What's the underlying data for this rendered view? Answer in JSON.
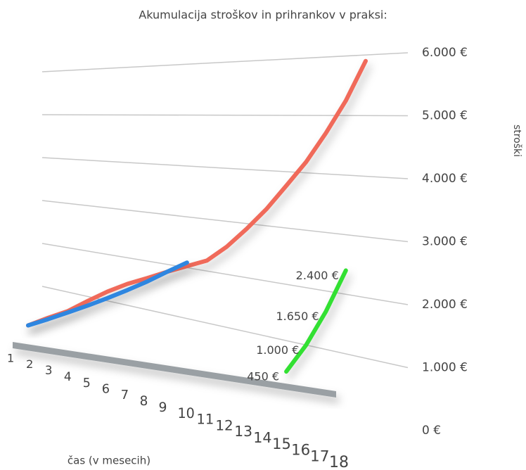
{
  "chart_data": {
    "type": "line",
    "title": "Akumulacija stroškov in prihrankov v praksi:",
    "x_label": "čas (v mesecih)",
    "y_label": "stroški",
    "categories": [
      "1",
      "2",
      "3",
      "4",
      "5",
      "6",
      "7",
      "8",
      "9",
      "10",
      "11",
      "12",
      "13",
      "14",
      "15",
      "16",
      "17",
      "18"
    ],
    "series": [
      {
        "name": "",
        "color": "#f06a5a",
        "values": [
          0,
          300,
          570,
          900,
          1200,
          1450,
          1650,
          1850,
          2030,
          2200,
          2520,
          2900,
          3300,
          3750,
          4190,
          4700,
          5250,
          5900
        ]
      },
      {
        "name": "",
        "color": "#2f86e0",
        "values": [
          0,
          270,
          540,
          800,
          1060,
          1320,
          1580,
          1850,
          2100,
          null,
          null,
          null,
          null,
          null,
          null,
          null,
          null,
          null
        ]
      },
      {
        "name": "",
        "color": "#33e033",
        "values": [
          null,
          null,
          null,
          null,
          null,
          null,
          null,
          null,
          null,
          null,
          null,
          null,
          null,
          450,
          1000,
          1650,
          2400,
          null
        ],
        "value_labels": [
          null,
          null,
          null,
          null,
          null,
          null,
          null,
          null,
          null,
          null,
          null,
          null,
          null,
          "450 €",
          "1.000 €",
          "1.650 €",
          "2.400 €",
          null
        ]
      }
    ],
    "ylim": [
      0,
      6000
    ],
    "yticks": [
      {
        "value": 0,
        "label": "0 €"
      },
      {
        "value": 1000,
        "label": "1.000 €"
      },
      {
        "value": 2000,
        "label": "2.000 €"
      },
      {
        "value": 3000,
        "label": "3.000 €"
      },
      {
        "value": 4000,
        "label": "4.000 €"
      },
      {
        "value": 5000,
        "label": "5.000 €"
      },
      {
        "value": 6000,
        "label": "6.000 €"
      }
    ],
    "grid": true
  }
}
